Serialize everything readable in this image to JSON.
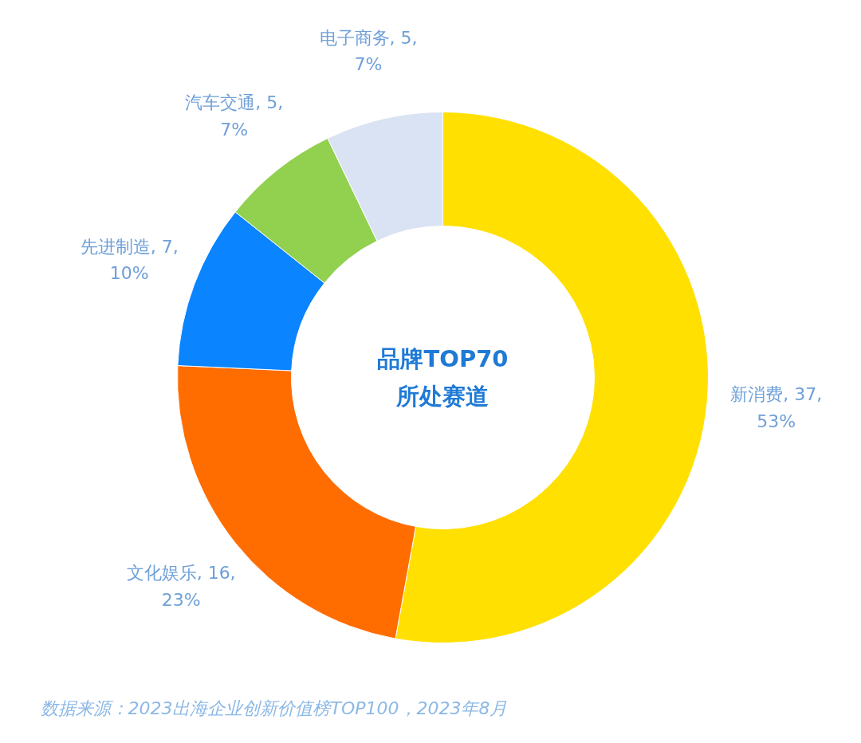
{
  "chart_data": {
    "type": "donut",
    "title": "品牌TOP70\n所处赛道",
    "categories": [
      "新消费",
      "文化娱乐",
      "先进制造",
      "汽车交通",
      "电子商务"
    ],
    "values": [
      37,
      16,
      7,
      5,
      5
    ],
    "value_labels": [
      "37, 53%",
      "16, 23%",
      "7, 10%",
      "5, 7%",
      "5, 7%"
    ],
    "colors": [
      "#ffe000",
      "#ff6d00",
      "#0a84ff",
      "#92d050",
      "#dae3f3"
    ],
    "annotations": [
      "数据来源：2023出海企业创新价值榜TOP100，2023年8月"
    ]
  }
}
